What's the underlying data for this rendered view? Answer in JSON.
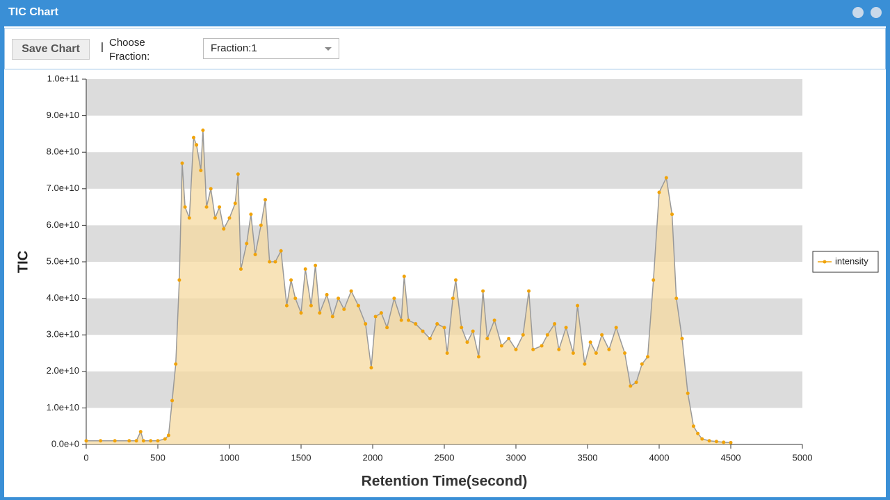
{
  "window": {
    "title": "TIC Chart"
  },
  "toolbar": {
    "save_button": "Save Chart",
    "separator": "|",
    "choose_label": "Choose Fraction:",
    "fraction_select": "Fraction:1"
  },
  "chart_data": {
    "type": "line",
    "area": true,
    "x_label": "Retention Time(second)",
    "y_label": "TIC",
    "x": [
      0,
      100,
      200,
      300,
      350,
      380,
      400,
      450,
      500,
      550,
      575,
      600,
      625,
      650,
      670,
      690,
      720,
      750,
      770,
      800,
      815,
      840,
      870,
      900,
      930,
      960,
      1000,
      1040,
      1060,
      1080,
      1120,
      1150,
      1180,
      1220,
      1250,
      1280,
      1320,
      1360,
      1400,
      1430,
      1460,
      1500,
      1530,
      1570,
      1600,
      1630,
      1680,
      1720,
      1760,
      1800,
      1850,
      1900,
      1950,
      1990,
      2020,
      2060,
      2100,
      2150,
      2200,
      2220,
      2250,
      2300,
      2350,
      2400,
      2450,
      2500,
      2520,
      2560,
      2580,
      2620,
      2660,
      2700,
      2740,
      2770,
      2800,
      2850,
      2900,
      2950,
      3000,
      3050,
      3090,
      3120,
      3180,
      3220,
      3270,
      3300,
      3350,
      3400,
      3430,
      3480,
      3520,
      3560,
      3600,
      3650,
      3700,
      3760,
      3800,
      3840,
      3880,
      3920,
      3960,
      4000,
      4050,
      4090,
      4120,
      4160,
      4200,
      4240,
      4270,
      4300,
      4350,
      4400,
      4450,
      4500
    ],
    "series": [
      {
        "name": "intensity",
        "color": "#f0a30a",
        "fill": "#f5d9a0",
        "values": [
          1000000000.0,
          1000000000.0,
          1000000000.0,
          1000000000.0,
          1000000000.0,
          3500000000.0,
          1000000000.0,
          1000000000.0,
          1000000000.0,
          1500000000.0,
          2500000000.0,
          12000000000.0,
          22000000000.0,
          45000000000.0,
          77000000000.0,
          65000000000.0,
          62000000000.0,
          84000000000.0,
          82000000000.0,
          75000000000.0,
          86000000000.0,
          65000000000.0,
          70000000000.0,
          62000000000.0,
          65000000000.0,
          59000000000.0,
          62000000000.0,
          66000000000.0,
          74000000000.0,
          48000000000.0,
          55000000000.0,
          63000000000.0,
          52000000000.0,
          60000000000.0,
          67000000000.0,
          50000000000.0,
          50000000000.0,
          53000000000.0,
          38000000000.0,
          45000000000.0,
          40000000000.0,
          36000000000.0,
          48000000000.0,
          38000000000.0,
          49000000000.0,
          36000000000.0,
          41000000000.0,
          35000000000.0,
          40000000000.0,
          37000000000.0,
          42000000000.0,
          38000000000.0,
          33000000000.0,
          21000000000.0,
          35000000000.0,
          36000000000.0,
          32000000000.0,
          40000000000.0,
          34000000000.0,
          46000000000.0,
          34000000000.0,
          33000000000.0,
          31000000000.0,
          29000000000.0,
          33000000000.0,
          32000000000.0,
          25000000000.0,
          40000000000.0,
          45000000000.0,
          32000000000.0,
          28000000000.0,
          31000000000.0,
          24000000000.0,
          42000000000.0,
          29000000000.0,
          34000000000.0,
          27000000000.0,
          29000000000.0,
          26000000000.0,
          30000000000.0,
          42000000000.0,
          26000000000.0,
          27000000000.0,
          30000000000.0,
          33000000000.0,
          26000000000.0,
          32000000000.0,
          25000000000.0,
          38000000000.0,
          22000000000.0,
          28000000000.0,
          25000000000.0,
          30000000000.0,
          26000000000.0,
          32000000000.0,
          25000000000.0,
          16000000000.0,
          17000000000.0,
          22000000000.0,
          24000000000.0,
          45000000000.0,
          69000000000.0,
          73000000000.0,
          63000000000.0,
          40000000000.0,
          29000000000.0,
          14000000000.0,
          5000000000.0,
          3000000000.0,
          1500000000.0,
          1000000000.0,
          800000000.0,
          600000000.0,
          500000000.0
        ]
      }
    ],
    "xlim": [
      0,
      5000
    ],
    "xticks": [
      0,
      500,
      1000,
      1500,
      2000,
      2500,
      3000,
      3500,
      4000,
      4500,
      5000
    ],
    "ylim": [
      0,
      100000000000.0
    ],
    "yticks": [
      {
        "value": 0,
        "label": "0.0e+0"
      },
      {
        "value": 10000000000.0,
        "label": "1.0e+10"
      },
      {
        "value": 20000000000.0,
        "label": "2.0e+10"
      },
      {
        "value": 30000000000.0,
        "label": "3.0e+10"
      },
      {
        "value": 40000000000.0,
        "label": "4.0e+10"
      },
      {
        "value": 50000000000.0,
        "label": "5.0e+10"
      },
      {
        "value": 60000000000.0,
        "label": "6.0e+10"
      },
      {
        "value": 70000000000.0,
        "label": "7.0e+10"
      },
      {
        "value": 80000000000.0,
        "label": "8.0e+10"
      },
      {
        "value": 90000000000.0,
        "label": "9.0e+10"
      },
      {
        "value": 100000000000.0,
        "label": "1.0e+11"
      }
    ],
    "grid": "alternate-bands",
    "band_color": "#dcdcdc",
    "legend": "right"
  }
}
